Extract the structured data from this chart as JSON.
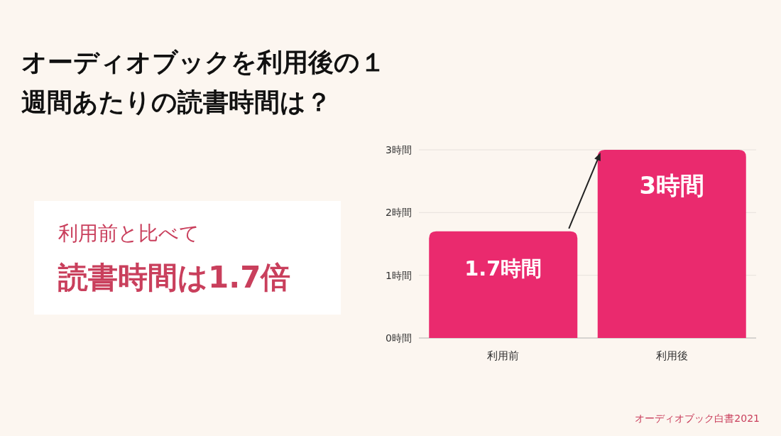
{
  "chart_data": {
    "type": "bar",
    "title": "オーディオブックを利用後の１週間あたりの読書時間は？",
    "categories": [
      "利用前",
      "利用後"
    ],
    "values": [
      1.7,
      3
    ],
    "value_labels": [
      "1.7時間",
      "3時間"
    ],
    "color": "#ea2a6e",
    "ylim": [
      0,
      3
    ],
    "yticks": [
      {
        "value": 0,
        "label": "0時間"
      },
      {
        "value": 1,
        "label": "1時間"
      },
      {
        "value": 2,
        "label": "2時間"
      },
      {
        "value": 3,
        "label": "3時間"
      }
    ],
    "grid": "y",
    "annotations": [
      "利用前と比べて",
      "読書時間は1.7倍",
      "オーディオブック白書2021"
    ]
  }
}
